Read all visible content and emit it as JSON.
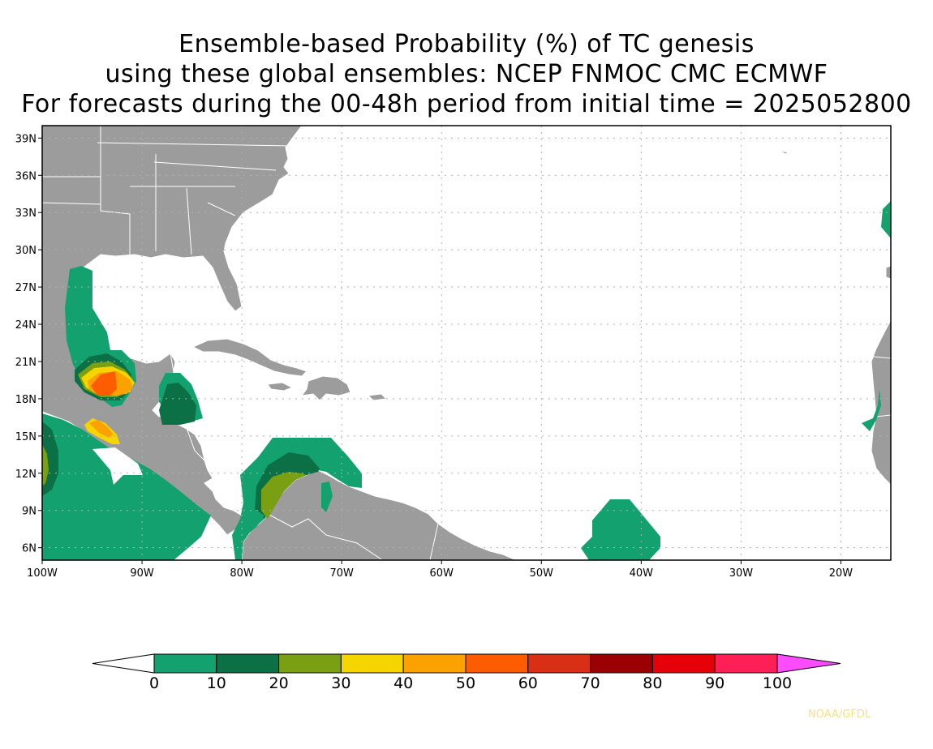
{
  "title": {
    "line1": "Ensemble-based Probability (%) of TC genesis",
    "line2": "using these global ensembles:   NCEP FNMOC CMC ECMWF",
    "line3": "For forecasts during the 00-48h period from initial time = 2025052800"
  },
  "map": {
    "lon_range": [
      -100,
      -15
    ],
    "lat_range": [
      5,
      40
    ],
    "lon_ticks": [
      {
        "value": -100,
        "label": "100W"
      },
      {
        "value": -90,
        "label": "90W"
      },
      {
        "value": -80,
        "label": "80W"
      },
      {
        "value": -70,
        "label": "70W"
      },
      {
        "value": -60,
        "label": "60W"
      },
      {
        "value": -50,
        "label": "50W"
      },
      {
        "value": -40,
        "label": "40W"
      },
      {
        "value": -30,
        "label": "30W"
      },
      {
        "value": -20,
        "label": "20W"
      }
    ],
    "lat_ticks": [
      {
        "value": 6,
        "label": "6N"
      },
      {
        "value": 9,
        "label": "9N"
      },
      {
        "value": 12,
        "label": "12N"
      },
      {
        "value": 15,
        "label": "15N"
      },
      {
        "value": 18,
        "label": "18N"
      },
      {
        "value": 21,
        "label": "21N"
      },
      {
        "value": 24,
        "label": "24N"
      },
      {
        "value": 27,
        "label": "27N"
      },
      {
        "value": 30,
        "label": "30N"
      },
      {
        "value": 33,
        "label": "33N"
      },
      {
        "value": 36,
        "label": "36N"
      },
      {
        "value": 39,
        "label": "39N"
      }
    ],
    "land_color": "#9c9c9c",
    "ocean_color": "#ffffff",
    "grid": "dotted"
  },
  "colorbar": {
    "labels": [
      "0",
      "10",
      "20",
      "30",
      "40",
      "50",
      "60",
      "70",
      "80",
      "90",
      "100"
    ],
    "colors": [
      "#13a170",
      "#0b7045",
      "#7b9f12",
      "#f5d500",
      "#fca200",
      "#fd5c00",
      "#d93015",
      "#9a0004",
      "#e60008",
      "#fd1f55"
    ],
    "under_color": "#ffffff",
    "over_color": "#fd4cfd"
  },
  "credit": "NOAA/GFDL"
}
